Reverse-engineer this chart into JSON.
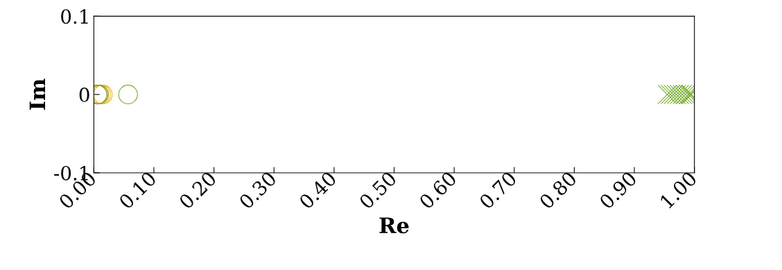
{
  "chart_data": {
    "type": "scatter",
    "xlabel": "Re",
    "ylabel": "Im",
    "xlim": [
      0,
      1
    ],
    "ylim": [
      -0.1,
      0.1
    ],
    "xticks": [
      {
        "value": 0,
        "label": "0.00"
      },
      {
        "value": 0.1,
        "label": "0.10"
      },
      {
        "value": 0.2,
        "label": "0.20"
      },
      {
        "value": 0.3,
        "label": "0.30"
      },
      {
        "value": 0.4,
        "label": "0.40"
      },
      {
        "value": 0.5,
        "label": "0.50"
      },
      {
        "value": 0.6,
        "label": "0.60"
      },
      {
        "value": 0.7,
        "label": "0.70"
      },
      {
        "value": 0.8,
        "label": "0.80"
      },
      {
        "value": 0.9,
        "label": "0.90"
      },
      {
        "value": 1.0,
        "label": "1.00"
      }
    ],
    "yticks": [
      -0.1,
      0,
      0.1
    ],
    "grid": false,
    "legend": false,
    "series": [
      {
        "color": "#edb120",
        "marker": "circle",
        "x": [
          0.006,
          0.009,
          0.012,
          0.015
        ],
        "values": [
          0,
          0,
          0,
          0
        ]
      },
      {
        "color": "#77ac30",
        "marker": "circle",
        "x": [
          0.006,
          0.008,
          0.057
        ],
        "values": [
          0,
          0,
          0
        ]
      },
      {
        "color": "#77ac30",
        "marker": "cross",
        "x": [
          0.955,
          0.96,
          0.965,
          0.97,
          0.975,
          0.98,
          0.985,
          0.99,
          0.993,
          0.995
        ],
        "values": [
          0,
          0,
          0,
          0,
          0,
          0,
          0,
          0,
          0,
          0
        ]
      }
    ]
  }
}
